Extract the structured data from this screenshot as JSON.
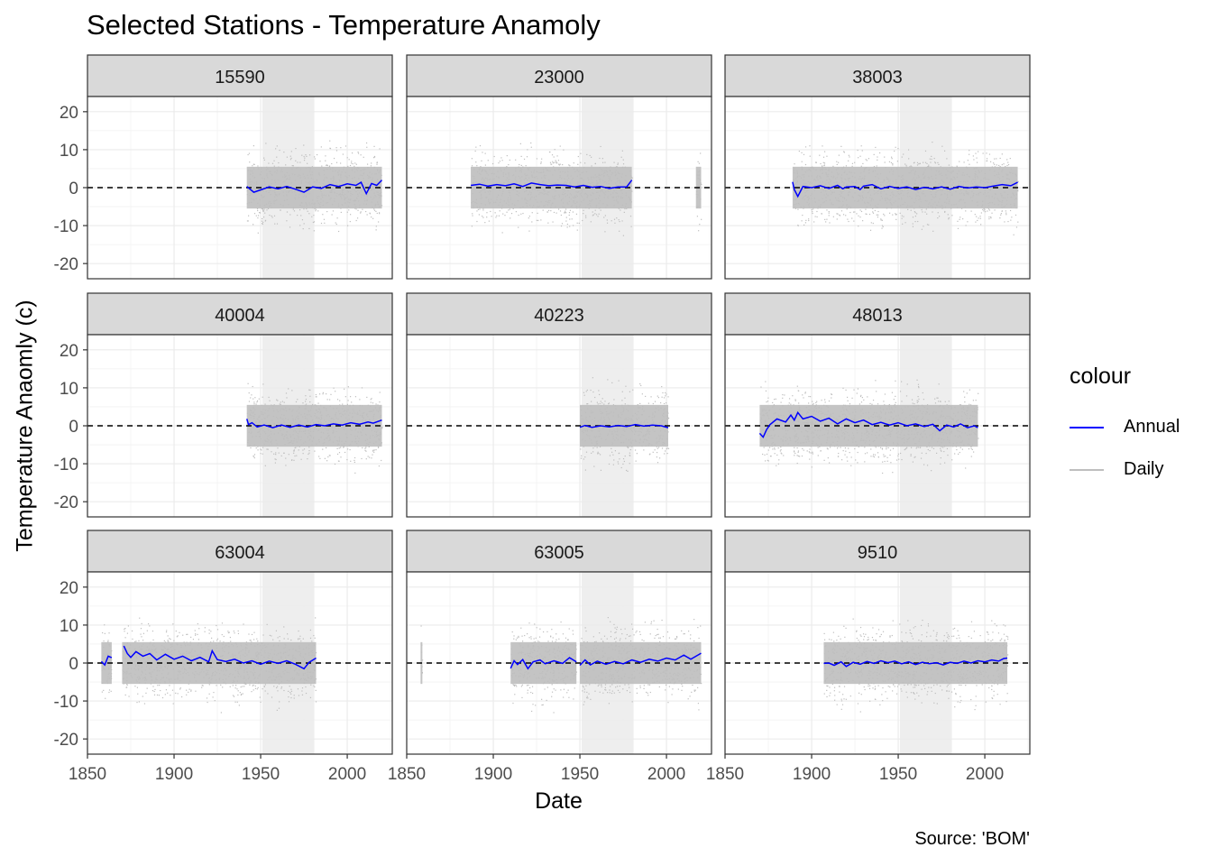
{
  "chart_data": {
    "type": "line",
    "title": "Selected Stations - Temperature Anamoly",
    "xlabel": "Date",
    "ylabel": "Temperature Anaomly (c)",
    "caption": "Source: 'BOM'",
    "xlim": [
      1850,
      2026
    ],
    "ylim": [
      -24,
      24
    ],
    "x_ticks": [
      1850,
      1900,
      1950,
      2000
    ],
    "y_ticks": [
      -20,
      -10,
      0,
      10,
      20
    ],
    "reference_line": 0,
    "shaded_band": [
      1951,
      1981
    ],
    "grid": true,
    "legend": {
      "title": "colour",
      "position": "right",
      "entries": [
        {
          "label": "Annual",
          "color": "#0000ff"
        },
        {
          "label": "Daily",
          "color": "#bebebe"
        }
      ]
    },
    "colors": {
      "annual": "#0000ff",
      "daily": "#bebebe",
      "strip": "#d9d9d9",
      "band": "#ebebeb"
    },
    "panels": [
      {
        "station": "15590",
        "daily_ranges": [
          [
            1942,
            2020
          ]
        ],
        "annual": [
          [
            1942,
            0.3
          ],
          [
            1946,
            -1.2
          ],
          [
            1950,
            -0.6
          ],
          [
            1955,
            0.2
          ],
          [
            1960,
            -0.3
          ],
          [
            1965,
            0.3
          ],
          [
            1970,
            -0.4
          ],
          [
            1975,
            -1.2
          ],
          [
            1980,
            0.2
          ],
          [
            1985,
            -0.2
          ],
          [
            1990,
            0.8
          ],
          [
            1995,
            0.3
          ],
          [
            2000,
            1.0
          ],
          [
            2005,
            0.6
          ],
          [
            2008,
            1.4
          ],
          [
            2011,
            -1.6
          ],
          [
            2014,
            1.1
          ],
          [
            2017,
            0.6
          ],
          [
            2020,
            2.0
          ]
        ]
      },
      {
        "station": "23000",
        "daily_ranges": [
          [
            1887,
            1980
          ],
          [
            2017,
            2020
          ]
        ],
        "annual": [
          [
            1887,
            0.6
          ],
          [
            1892,
            0.9
          ],
          [
            1897,
            0.4
          ],
          [
            1902,
            0.8
          ],
          [
            1907,
            0.5
          ],
          [
            1912,
            1.0
          ],
          [
            1917,
            0.3
          ],
          [
            1922,
            1.2
          ],
          [
            1927,
            0.8
          ],
          [
            1932,
            0.5
          ],
          [
            1937,
            0.7
          ],
          [
            1942,
            0.6
          ],
          [
            1947,
            0.2
          ],
          [
            1952,
            0.6
          ],
          [
            1957,
            0.1
          ],
          [
            1962,
            0.3
          ],
          [
            1967,
            -0.2
          ],
          [
            1972,
            0.2
          ],
          [
            1977,
            0.2
          ],
          [
            1980,
            2.0
          ]
        ]
      },
      {
        "station": "38003",
        "daily_ranges": [
          [
            1889,
            2019
          ]
        ],
        "annual": [
          [
            1889,
            1.5
          ],
          [
            1890,
            -0.5
          ],
          [
            1892,
            -2.3
          ],
          [
            1895,
            0.3
          ],
          [
            1900,
            0.0
          ],
          [
            1905,
            0.5
          ],
          [
            1910,
            -0.2
          ],
          [
            1915,
            0.6
          ],
          [
            1918,
            -0.3
          ],
          [
            1920,
            0.2
          ],
          [
            1925,
            0.3
          ],
          [
            1928,
            -0.5
          ],
          [
            1930,
            0.4
          ],
          [
            1935,
            0.8
          ],
          [
            1940,
            -0.3
          ],
          [
            1945,
            0.3
          ],
          [
            1950,
            -0.2
          ],
          [
            1955,
            0.2
          ],
          [
            1960,
            -0.5
          ],
          [
            1965,
            0.1
          ],
          [
            1970,
            -0.3
          ],
          [
            1975,
            0.2
          ],
          [
            1980,
            -0.4
          ],
          [
            1985,
            0.3
          ],
          [
            1990,
            -0.1
          ],
          [
            1995,
            0.2
          ],
          [
            2000,
            0.0
          ],
          [
            2005,
            0.4
          ],
          [
            2010,
            0.8
          ],
          [
            2015,
            0.5
          ],
          [
            2019,
            1.4
          ]
        ]
      },
      {
        "station": "40004",
        "daily_ranges": [
          [
            1942,
            2020
          ]
        ],
        "annual": [
          [
            1942,
            1.8
          ],
          [
            1943,
            0.3
          ],
          [
            1945,
            0.8
          ],
          [
            1948,
            -0.3
          ],
          [
            1952,
            0.2
          ],
          [
            1957,
            -0.5
          ],
          [
            1962,
            0.2
          ],
          [
            1967,
            -0.4
          ],
          [
            1972,
            0.2
          ],
          [
            1977,
            -0.3
          ],
          [
            1982,
            0.3
          ],
          [
            1987,
            0.0
          ],
          [
            1992,
            0.5
          ],
          [
            1997,
            0.2
          ],
          [
            2002,
            0.8
          ],
          [
            2007,
            0.4
          ],
          [
            2012,
            1.0
          ],
          [
            2015,
            0.7
          ],
          [
            2020,
            1.5
          ]
        ]
      },
      {
        "station": "40223",
        "daily_ranges": [
          [
            1950,
            2001
          ]
        ],
        "annual": [
          [
            1950,
            -0.4
          ],
          [
            1953,
            0.1
          ],
          [
            1957,
            -0.4
          ],
          [
            1962,
            0.0
          ],
          [
            1967,
            -0.3
          ],
          [
            1972,
            0.1
          ],
          [
            1977,
            -0.2
          ],
          [
            1982,
            0.3
          ],
          [
            1987,
            -0.1
          ],
          [
            1992,
            0.2
          ],
          [
            1997,
            0.0
          ],
          [
            2001,
            -0.5
          ]
        ]
      },
      {
        "station": "48013",
        "daily_ranges": [
          [
            1870,
            1996
          ]
        ],
        "annual": [
          [
            1870,
            -2.0
          ],
          [
            1872,
            -3.0
          ],
          [
            1874,
            -1.0
          ],
          [
            1876,
            0.3
          ],
          [
            1880,
            1.8
          ],
          [
            1885,
            1.0
          ],
          [
            1888,
            2.8
          ],
          [
            1890,
            1.5
          ],
          [
            1892,
            3.5
          ],
          [
            1895,
            1.8
          ],
          [
            1900,
            2.5
          ],
          [
            1905,
            1.2
          ],
          [
            1910,
            2.0
          ],
          [
            1915,
            0.5
          ],
          [
            1920,
            1.8
          ],
          [
            1925,
            0.8
          ],
          [
            1930,
            1.5
          ],
          [
            1935,
            0.3
          ],
          [
            1940,
            0.9
          ],
          [
            1945,
            0.2
          ],
          [
            1950,
            0.8
          ],
          [
            1955,
            0.0
          ],
          [
            1960,
            0.5
          ],
          [
            1965,
            -0.2
          ],
          [
            1970,
            0.4
          ],
          [
            1974,
            -1.3
          ],
          [
            1978,
            0.2
          ],
          [
            1982,
            -0.3
          ],
          [
            1986,
            0.5
          ],
          [
            1990,
            -0.5
          ],
          [
            1994,
            0.0
          ],
          [
            1996,
            -0.5
          ]
        ]
      },
      {
        "station": "63004",
        "daily_ranges": [
          [
            1858,
            1864
          ],
          [
            1870,
            1982
          ]
        ],
        "annual": [
          [
            1858,
            0.4
          ],
          [
            1860,
            -0.5
          ],
          [
            1862,
            1.8
          ],
          [
            1864,
            1.4
          ],
          null,
          [
            1871,
            4.5
          ],
          [
            1873,
            2.5
          ],
          [
            1875,
            1.5
          ],
          [
            1878,
            3.0
          ],
          [
            1882,
            1.8
          ],
          [
            1886,
            2.5
          ],
          [
            1890,
            0.8
          ],
          [
            1895,
            2.3
          ],
          [
            1900,
            1.0
          ],
          [
            1905,
            1.8
          ],
          [
            1910,
            0.6
          ],
          [
            1915,
            1.5
          ],
          [
            1920,
            0.3
          ],
          [
            1922,
            3.2
          ],
          [
            1925,
            0.9
          ],
          [
            1930,
            0.4
          ],
          [
            1935,
            1.0
          ],
          [
            1940,
            0.0
          ],
          [
            1945,
            0.6
          ],
          [
            1950,
            -0.3
          ],
          [
            1955,
            0.5
          ],
          [
            1960,
            -0.1
          ],
          [
            1965,
            0.6
          ],
          [
            1970,
            -0.3
          ],
          [
            1975,
            -1.5
          ],
          [
            1978,
            0.2
          ],
          [
            1982,
            1.3
          ]
        ]
      },
      {
        "station": "63005",
        "daily_ranges": [
          [
            1858,
            1858
          ],
          [
            1910,
            1948
          ],
          [
            1950,
            2020
          ]
        ],
        "annual": [
          [
            1910,
            -1.4
          ],
          [
            1912,
            0.6
          ],
          [
            1914,
            -0.4
          ],
          [
            1917,
            0.9
          ],
          [
            1920,
            -1.5
          ],
          [
            1923,
            0.3
          ],
          [
            1927,
            0.8
          ],
          [
            1930,
            -0.2
          ],
          [
            1935,
            0.6
          ],
          [
            1940,
            -0.1
          ],
          [
            1944,
            1.4
          ],
          [
            1948,
            0.3
          ],
          null,
          [
            1950,
            -0.6
          ],
          [
            1953,
            0.8
          ],
          [
            1956,
            -0.5
          ],
          [
            1960,
            0.5
          ],
          [
            1965,
            -0.3
          ],
          [
            1970,
            0.4
          ],
          [
            1975,
            -0.2
          ],
          [
            1980,
            0.8
          ],
          [
            1985,
            0.2
          ],
          [
            1990,
            1.0
          ],
          [
            1995,
            0.5
          ],
          [
            2000,
            1.3
          ],
          [
            2005,
            0.8
          ],
          [
            2010,
            2.1
          ],
          [
            2014,
            1.0
          ],
          [
            2020,
            2.6
          ]
        ]
      },
      {
        "station": "9510",
        "daily_ranges": [
          [
            1907,
            2013
          ]
        ],
        "annual": [
          [
            1907,
            -0.1
          ],
          [
            1910,
            0.0
          ],
          [
            1913,
            -0.6
          ],
          [
            1917,
            0.3
          ],
          [
            1920,
            -0.9
          ],
          [
            1924,
            0.2
          ],
          [
            1928,
            -0.3
          ],
          [
            1932,
            0.4
          ],
          [
            1936,
            -0.1
          ],
          [
            1940,
            0.6
          ],
          [
            1944,
            0.1
          ],
          [
            1948,
            0.5
          ],
          [
            1952,
            -0.2
          ],
          [
            1956,
            0.3
          ],
          [
            1960,
            -0.4
          ],
          [
            1964,
            0.2
          ],
          [
            1968,
            -0.2
          ],
          [
            1972,
            0.1
          ],
          [
            1976,
            -0.5
          ],
          [
            1980,
            0.2
          ],
          [
            1984,
            -0.1
          ],
          [
            1988,
            0.5
          ],
          [
            1992,
            0.0
          ],
          [
            1996,
            0.6
          ],
          [
            2000,
            0.3
          ],
          [
            2004,
            0.8
          ],
          [
            2008,
            0.5
          ],
          [
            2011,
            1.2
          ],
          [
            2013,
            1.3
          ]
        ]
      }
    ]
  }
}
